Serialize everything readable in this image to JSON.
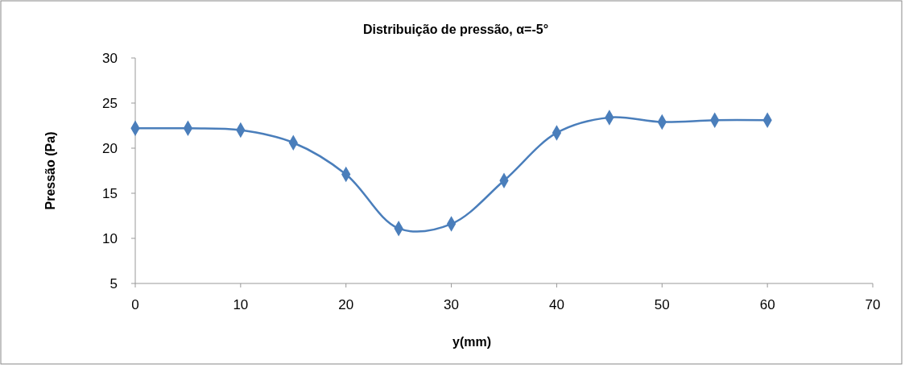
{
  "chart_data": {
    "type": "line",
    "title": "Distribuição de pressão, α=-5°",
    "xlabel": "y(mm)",
    "ylabel": "Pressão (Pa)",
    "x": [
      0,
      5,
      10,
      15,
      20,
      25,
      30,
      35,
      40,
      45,
      50,
      55,
      60
    ],
    "series": [
      {
        "color": "#4a7ebb",
        "values": [
          22.2,
          22.2,
          22.0,
          20.6,
          17.1,
          11.1,
          11.6,
          16.4,
          21.7,
          23.4,
          22.9,
          23.1,
          23.1
        ]
      }
    ],
    "xlim": [
      0,
      70
    ],
    "xticks": [
      0,
      10,
      20,
      30,
      40,
      50,
      60,
      70
    ],
    "ylim": [
      5,
      30
    ],
    "yticks": [
      5,
      10,
      15,
      20,
      25,
      30
    ],
    "grid": false,
    "marker": "diamond",
    "line_style": "solid"
  }
}
